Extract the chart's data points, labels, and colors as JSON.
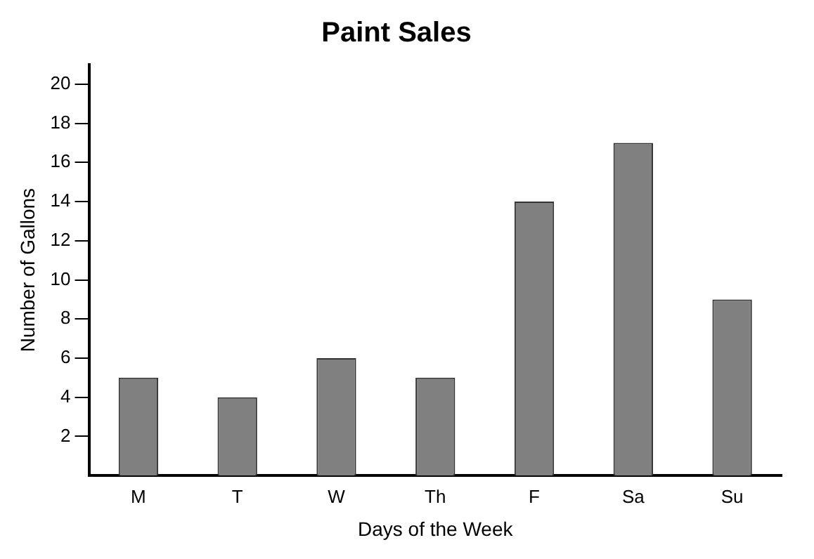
{
  "chart_data": {
    "type": "bar",
    "title": "Paint Sales",
    "xlabel": "Days of the Week",
    "ylabel": "Number of Gallons",
    "categories": [
      "M",
      "T",
      "W",
      "Th",
      "F",
      "Sa",
      "Su"
    ],
    "values": [
      5,
      4,
      6,
      5,
      14,
      17,
      9
    ],
    "color": "#808080",
    "ylim": [
      0,
      21
    ],
    "yticks": [
      2,
      4,
      6,
      8,
      10,
      12,
      14,
      16,
      18,
      20
    ],
    "grid": false,
    "legend": false
  }
}
